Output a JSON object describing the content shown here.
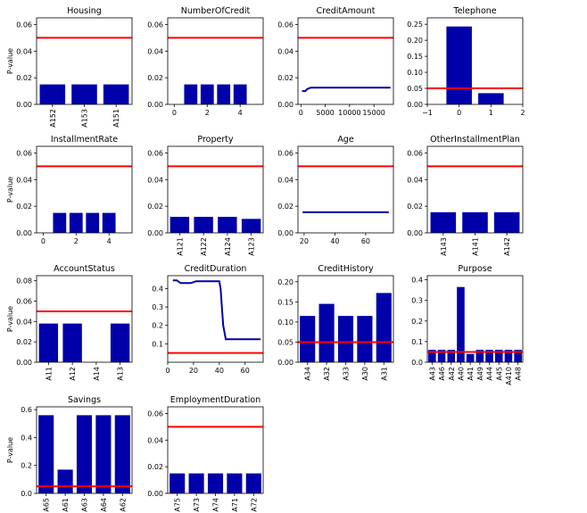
{
  "colors": {
    "bar": "#0000aa",
    "threshold": "#ff0000",
    "axis": "#000000"
  },
  "chart_data": [
    {
      "type": "bar",
      "title": "Housing",
      "ylabel": "P-value",
      "ylim": [
        0,
        0.065
      ],
      "yticks": [
        0,
        0.02,
        0.04,
        0.06
      ],
      "ytick_labels": [
        "0.00",
        "0.02",
        "0.04",
        "0.06"
      ],
      "categories": [
        "A152",
        "A153",
        "A151"
      ],
      "values": [
        0.015,
        0.015,
        0.015
      ],
      "threshold": 0.05
    },
    {
      "type": "bar",
      "title": "NumberOfCredit",
      "ylabel": "",
      "ylim": [
        0,
        0.065
      ],
      "xlim": [
        -0.4,
        5.4
      ],
      "yticks": [
        0,
        0.02,
        0.04,
        0.06
      ],
      "ytick_labels": [
        "0.00",
        "0.02",
        "0.04",
        "0.06"
      ],
      "xticks": [
        0,
        2,
        4
      ],
      "xtick_labels": [
        "0",
        "2",
        "4"
      ],
      "x": [
        1,
        2,
        3,
        4
      ],
      "values": [
        0.015,
        0.015,
        0.015,
        0.015
      ],
      "threshold": 0.05
    },
    {
      "type": "line",
      "title": "CreditAmount",
      "ylabel": "",
      "ylim": [
        0,
        0.065
      ],
      "xlim": [
        -600,
        19000
      ],
      "yticks": [
        0,
        0.02,
        0.04,
        0.06
      ],
      "ytick_labels": [
        "0.00",
        "0.02",
        "0.04",
        "0.06"
      ],
      "xticks": [
        0,
        5000,
        10000,
        15000
      ],
      "xtick_labels": [
        "0",
        "5000",
        "10000",
        "15000"
      ],
      "x": [
        250,
        900,
        1300,
        2000,
        3000,
        18400
      ],
      "values": [
        0.01,
        0.01,
        0.0115,
        0.0125,
        0.0125,
        0.0125
      ],
      "threshold": 0.05
    },
    {
      "type": "bar",
      "title": "Telephone",
      "ylabel": "",
      "ylim": [
        0,
        0.27
      ],
      "xlim": [
        -1,
        2
      ],
      "yticks": [
        0,
        0.05,
        0.1,
        0.15,
        0.2,
        0.25
      ],
      "ytick_labels": [
        "0.00",
        "0.05",
        "0.10",
        "0.15",
        "0.20",
        "0.25"
      ],
      "xticks": [
        -1,
        0,
        1,
        2
      ],
      "xtick_labels": [
        "−1",
        "0",
        "1",
        "2"
      ],
      "x": [
        0,
        1
      ],
      "values": [
        0.243,
        0.035
      ],
      "threshold": 0.05
    },
    {
      "type": "bar",
      "title": "InstallmentRate",
      "ylabel": "P-value",
      "ylim": [
        0,
        0.065
      ],
      "xlim": [
        -0.4,
        5.4
      ],
      "yticks": [
        0,
        0.02,
        0.04,
        0.06
      ],
      "ytick_labels": [
        "0.00",
        "0.02",
        "0.04",
        "0.06"
      ],
      "xticks": [
        0,
        2,
        4
      ],
      "xtick_labels": [
        "0",
        "2",
        "4"
      ],
      "x": [
        1,
        2,
        3,
        4
      ],
      "values": [
        0.015,
        0.015,
        0.015,
        0.015
      ],
      "threshold": 0.05
    },
    {
      "type": "bar",
      "title": "Property",
      "ylabel": "",
      "ylim": [
        0,
        0.065
      ],
      "yticks": [
        0,
        0.02,
        0.04,
        0.06
      ],
      "ytick_labels": [
        "0.00",
        "0.02",
        "0.04",
        "0.06"
      ],
      "categories": [
        "A121",
        "A122",
        "A124",
        "A123"
      ],
      "values": [
        0.012,
        0.012,
        0.012,
        0.0105
      ],
      "threshold": 0.05
    },
    {
      "type": "line",
      "title": "Age",
      "ylabel": "",
      "ylim": [
        0,
        0.065
      ],
      "xlim": [
        16,
        78
      ],
      "yticks": [
        0,
        0.02,
        0.04,
        0.06
      ],
      "ytick_labels": [
        "0.00",
        "0.02",
        "0.04",
        "0.06"
      ],
      "xticks": [
        20,
        40,
        60
      ],
      "xtick_labels": [
        "20",
        "40",
        "60"
      ],
      "x": [
        19,
        75
      ],
      "values": [
        0.0155,
        0.0155
      ],
      "threshold": 0.05
    },
    {
      "type": "bar",
      "title": "OtherInstallmentPlan",
      "ylabel": "",
      "ylim": [
        0,
        0.065
      ],
      "yticks": [
        0,
        0.02,
        0.04,
        0.06
      ],
      "ytick_labels": [
        "0.00",
        "0.02",
        "0.04",
        "0.06"
      ],
      "categories": [
        "A143",
        "A141",
        "A142"
      ],
      "values": [
        0.0155,
        0.0155,
        0.0155
      ],
      "threshold": 0.05
    },
    {
      "type": "bar",
      "title": "AccountStatus",
      "ylabel": "P-value",
      "ylim": [
        0,
        0.085
      ],
      "yticks": [
        0,
        0.02,
        0.04,
        0.06,
        0.08
      ],
      "ytick_labels": [
        "0.00",
        "0.02",
        "0.04",
        "0.06",
        "0.08"
      ],
      "categories": [
        "A11",
        "A12",
        "A14",
        "A13"
      ],
      "values": [
        0.038,
        0.038,
        0,
        0.038
      ],
      "threshold": 0.05
    },
    {
      "type": "line",
      "title": "CreditDuration",
      "ylabel": "",
      "ylim": [
        0,
        0.47
      ],
      "xlim": [
        0,
        74
      ],
      "yticks": [
        0.1,
        0.2,
        0.3,
        0.4
      ],
      "ytick_labels": [
        "0.1",
        "0.2",
        "0.3",
        "0.4"
      ],
      "xticks": [
        0,
        20,
        40,
        60
      ],
      "xtick_labels": [
        "0",
        "20",
        "40",
        "60"
      ],
      "x": [
        4,
        7,
        10,
        16,
        18,
        22,
        40,
        41,
        42,
        43,
        45,
        48,
        72
      ],
      "values": [
        0.445,
        0.445,
        0.43,
        0.43,
        0.43,
        0.44,
        0.44,
        0.4,
        0.3,
        0.2,
        0.125,
        0.125,
        0.125
      ],
      "threshold": 0.05
    },
    {
      "type": "bar",
      "title": "CreditHistory",
      "ylabel": "",
      "ylim": [
        0,
        0.215
      ],
      "yticks": [
        0,
        0.05,
        0.1,
        0.15,
        0.2
      ],
      "ytick_labels": [
        "0.00",
        "0.05",
        "0.10",
        "0.15",
        "0.20"
      ],
      "categories": [
        "A34",
        "A32",
        "A33",
        "A30",
        "A31"
      ],
      "values": [
        0.115,
        0.145,
        0.115,
        0.115,
        0.172
      ],
      "threshold": 0.05
    },
    {
      "type": "bar",
      "title": "Purpose",
      "ylabel": "",
      "ylim": [
        0,
        0.42
      ],
      "yticks": [
        0,
        0.1,
        0.2,
        0.3,
        0.4
      ],
      "ytick_labels": [
        "0.0",
        "0.1",
        "0.2",
        "0.3",
        "0.4"
      ],
      "categories": [
        "A43",
        "A46",
        "A42",
        "A40",
        "A41",
        "A49",
        "A44",
        "A45",
        "A410",
        "A48"
      ],
      "values": [
        0.06,
        0.06,
        0.06,
        0.365,
        0.04,
        0.06,
        0.06,
        0.06,
        0.06,
        0.06
      ],
      "threshold": 0.05
    },
    {
      "type": "bar",
      "title": "Savings",
      "ylabel": "P-value",
      "ylim": [
        0,
        0.62
      ],
      "yticks": [
        0,
        0.2,
        0.4,
        0.6
      ],
      "ytick_labels": [
        "0.0",
        "0.2",
        "0.4",
        "0.6"
      ],
      "categories": [
        "A65",
        "A61",
        "A63",
        "A64",
        "A62"
      ],
      "values": [
        0.56,
        0.17,
        0.56,
        0.56,
        0.56
      ],
      "threshold": 0.05
    },
    {
      "type": "bar",
      "title": "EmploymentDuration",
      "ylabel": "",
      "ylim": [
        0,
        0.065
      ],
      "yticks": [
        0,
        0.02,
        0.04,
        0.06
      ],
      "ytick_labels": [
        "0.00",
        "0.02",
        "0.04",
        "0.06"
      ],
      "categories": [
        "A75",
        "A73",
        "A74",
        "A71",
        "A72"
      ],
      "values": [
        0.015,
        0.015,
        0.015,
        0.015,
        0.015
      ],
      "threshold": 0.05
    }
  ]
}
